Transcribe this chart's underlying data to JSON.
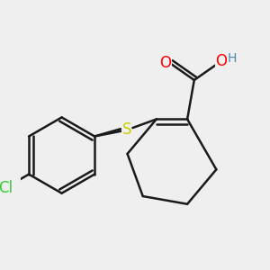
{
  "background_color": "#efefef",
  "line_color": "#1a1a1a",
  "bond_width": 1.8,
  "atom_colors": {
    "O": "#ff0000",
    "S": "#cccc00",
    "Cl": "#33cc33",
    "H": "#5588aa",
    "C": "#1a1a1a"
  }
}
